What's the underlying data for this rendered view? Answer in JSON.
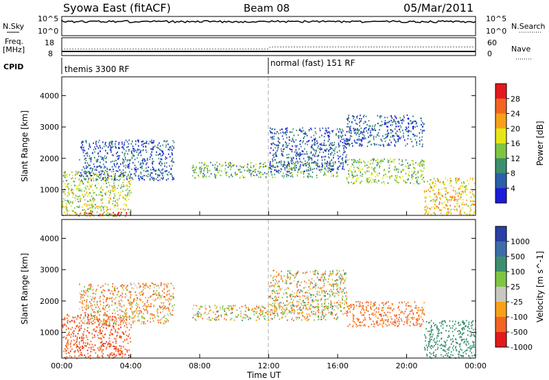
{
  "header": {
    "station": "Syowa East (fitACF)",
    "beam": "Beam 08",
    "date": "05/Mar/2011"
  },
  "noise_panel": {
    "left_label": "N.Sky",
    "right_label": "N.Search",
    "left_ticks": [
      "10^5",
      "10^0"
    ],
    "right_ticks": [
      "10^5",
      "10^0"
    ]
  },
  "freq_panel": {
    "left_label_line1": "Freq.",
    "left_label_line2": "[MHz]",
    "left_ticks": [
      "18",
      "8"
    ],
    "right_label": "Nave",
    "right_ticks": [
      "60",
      "0"
    ]
  },
  "cpid_panel": {
    "label": "CPID",
    "modes": [
      {
        "name": "themis 3300 RF",
        "start_hour": 0
      },
      {
        "name": "normal (fast) 151 RF",
        "start_hour": 12
      }
    ]
  },
  "axes": {
    "ylabel": "Slant Range [km]",
    "xlabel": "Time UT",
    "y_ticks": [
      "1000",
      "2000",
      "3000",
      "4000"
    ],
    "x_ticks": [
      "00:00",
      "04:00",
      "08:00",
      "12:00",
      "16:00",
      "20:00",
      "00:00"
    ]
  },
  "power_scale": {
    "label": "Power [dB]",
    "ticks": [
      "28",
      "24",
      "20",
      "16",
      "12",
      "8",
      "4"
    ],
    "colors": [
      "#e41a1c",
      "#f26522",
      "#f7a11a",
      "#e6e617",
      "#7ec544",
      "#3c8f6e",
      "#2b5fa8",
      "#1b1bd9"
    ]
  },
  "velocity_scale": {
    "label": "Velocity [m s^-1]",
    "ticks": [
      "1000",
      "500",
      "100",
      "25",
      "-25",
      "-100",
      "-500",
      "-1000"
    ],
    "colors": [
      "#2b3fa8",
      "#3c6ea8",
      "#3c8f6e",
      "#7ec544",
      "#c8c8c0",
      "#f7a11a",
      "#f26522",
      "#e41a1c"
    ]
  },
  "chart_data": [
    {
      "type": "heatmap",
      "title": "Power",
      "xlabel": "Time UT",
      "ylabel": "Slant Range [km]",
      "xlim": [
        "00:00",
        "24:00"
      ],
      "ylim": [
        180,
        4600
      ],
      "colorbar_label": "Power [dB]",
      "colorbar_ticks": [
        4,
        8,
        12,
        16,
        20,
        24,
        28
      ],
      "scatter_regions": [
        {
          "t_start": 0.0,
          "t_end": 4.0,
          "r_min": 180,
          "r_max": 1600,
          "value_db": 16
        },
        {
          "t_start": 0.8,
          "t_end": 4.0,
          "r_min": 180,
          "r_max": 300,
          "value_db": 28
        },
        {
          "t_start": 1.0,
          "t_end": 6.5,
          "r_min": 1300,
          "r_max": 2600,
          "value_db": 6
        },
        {
          "t_start": 7.5,
          "t_end": 16.0,
          "r_min": 1400,
          "r_max": 1900,
          "value_db": 12
        },
        {
          "t_start": 12.0,
          "t_end": 16.5,
          "r_min": 1600,
          "r_max": 3000,
          "value_db": 6
        },
        {
          "t_start": 16.5,
          "t_end": 21.0,
          "r_min": 1200,
          "r_max": 2000,
          "value_db": 14
        },
        {
          "t_start": 16.5,
          "t_end": 21.0,
          "r_min": 2400,
          "r_max": 3400,
          "value_db": 6
        },
        {
          "t_start": 21.0,
          "t_end": 24.0,
          "r_min": 200,
          "r_max": 1400,
          "value_db": 20
        }
      ]
    },
    {
      "type": "heatmap",
      "title": "Velocity",
      "xlabel": "Time UT",
      "ylabel": "Slant Range [km]",
      "xlim": [
        "00:00",
        "24:00"
      ],
      "ylim": [
        180,
        4600
      ],
      "colorbar_label": "Velocity [m s^-1]",
      "colorbar_ticks": [
        -1000,
        -500,
        -100,
        -25,
        25,
        100,
        500,
        1000
      ],
      "scatter_regions": [
        {
          "t_start": 0.0,
          "t_end": 4.0,
          "r_min": 180,
          "r_max": 1600,
          "value_ms": -400
        },
        {
          "t_start": 1.0,
          "t_end": 6.5,
          "r_min": 1300,
          "r_max": 2600,
          "value_ms": -80
        },
        {
          "t_start": 7.5,
          "t_end": 16.0,
          "r_min": 1400,
          "r_max": 1900,
          "value_ms": 0
        },
        {
          "t_start": 12.0,
          "t_end": 16.5,
          "r_min": 1600,
          "r_max": 3000,
          "value_ms": 0
        },
        {
          "t_start": 16.5,
          "t_end": 21.0,
          "r_min": 1200,
          "r_max": 2000,
          "value_ms": -200
        },
        {
          "t_start": 21.0,
          "t_end": 24.0,
          "r_min": 200,
          "r_max": 1400,
          "value_ms": 300
        }
      ]
    }
  ]
}
